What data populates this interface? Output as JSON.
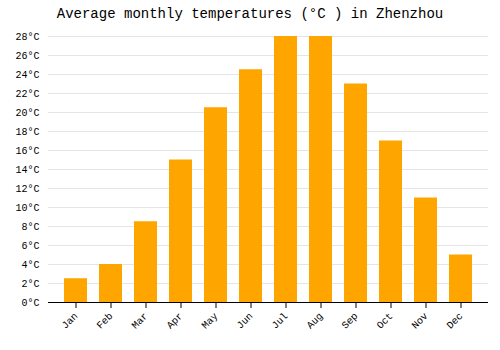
{
  "chart_data": {
    "type": "bar",
    "title": "Average monthly temperatures (°C ) in Zhenzhou",
    "categories": [
      "Jan",
      "Feb",
      "Mar",
      "Apr",
      "May",
      "Jun",
      "Jul",
      "Aug",
      "Sep",
      "Oct",
      "Nov",
      "Dec"
    ],
    "values": [
      2.5,
      4.0,
      8.5,
      15.0,
      20.5,
      24.5,
      28.0,
      28.0,
      23.0,
      17.0,
      11.0,
      5.0
    ],
    "color": "#FFA500",
    "ylim": [
      0,
      28
    ],
    "yticks": [
      {
        "value": 0,
        "label": "0°C"
      },
      {
        "value": 2,
        "label": "2°C"
      },
      {
        "value": 4,
        "label": "4°C"
      },
      {
        "value": 6,
        "label": "6°C"
      },
      {
        "value": 8,
        "label": "8°C"
      },
      {
        "value": 10,
        "label": "10°C"
      },
      {
        "value": 12,
        "label": "12°C"
      },
      {
        "value": 14,
        "label": "14°C"
      },
      {
        "value": 16,
        "label": "16°C"
      },
      {
        "value": 18,
        "label": "18°C"
      },
      {
        "value": 20,
        "label": "20°C"
      },
      {
        "value": 22,
        "label": "22°C"
      },
      {
        "value": 24,
        "label": "24°C"
      },
      {
        "value": 26,
        "label": "26°C"
      },
      {
        "value": 28,
        "label": "28°C"
      }
    ],
    "grid": true
  }
}
